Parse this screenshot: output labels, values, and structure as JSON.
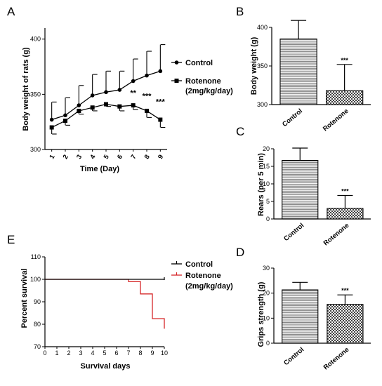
{
  "panel_labels": [
    "A",
    "B",
    "C",
    "D",
    "E"
  ],
  "chart_data": [
    {
      "id": "A",
      "type": "line",
      "xlabel": "Time (Day)",
      "ylabel": "Body weight of rats (g)",
      "ylim": [
        300,
        410
      ],
      "yticks": [
        300,
        350,
        400
      ],
      "x": [
        1,
        2,
        3,
        4,
        5,
        6,
        7,
        8,
        9
      ],
      "legend_placement": "top-right",
      "series": [
        {
          "name": "Control",
          "marker": "circle",
          "values": [
            327,
            331,
            340,
            349,
            352,
            354,
            362,
            367,
            371
          ],
          "errors": [
            16,
            16,
            18,
            19,
            19,
            17,
            20,
            22,
            24
          ]
        },
        {
          "name": "Rotenone",
          "name_line2": "(2mg/kg/day)",
          "marker": "square",
          "values": [
            320,
            326,
            335,
            338,
            341,
            339,
            340,
            335,
            327
          ],
          "errors": [
            6,
            4,
            3,
            3,
            2,
            4,
            4,
            6,
            7
          ]
        }
      ],
      "annotations": [
        {
          "x": 7,
          "y": 349,
          "text": "**"
        },
        {
          "x": 8,
          "y": 346,
          "text": "***"
        },
        {
          "x": 9,
          "y": 341,
          "text": "***"
        }
      ]
    },
    {
      "id": "B",
      "type": "bar",
      "ylabel": "Body weight (g)",
      "ylim": [
        300,
        400
      ],
      "yticks": [
        300,
        350,
        400
      ],
      "categories": [
        "Control",
        "Rotenone"
      ],
      "values": [
        385,
        318
      ],
      "errors": [
        24,
        34
      ],
      "annotations": [
        "",
        "***"
      ]
    },
    {
      "id": "C",
      "type": "bar",
      "ylabel": "Rears (per 5 min)",
      "ylim": [
        0,
        20
      ],
      "yticks": [
        0,
        5,
        10,
        15,
        20
      ],
      "categories": [
        "Control",
        "Rotenone"
      ],
      "values": [
        16.7,
        3.0
      ],
      "errors": [
        3.5,
        3.7
      ],
      "annotations": [
        "",
        "***"
      ]
    },
    {
      "id": "D",
      "type": "bar",
      "ylabel": "Grips strength (g)",
      "ylim": [
        0,
        30
      ],
      "yticks": [
        0,
        10,
        20,
        30
      ],
      "categories": [
        "Control",
        "Rotenone"
      ],
      "values": [
        21.3,
        15.5
      ],
      "errors": [
        3.0,
        3.8
      ],
      "annotations": [
        "",
        "***"
      ]
    },
    {
      "id": "E",
      "type": "line",
      "step": true,
      "xlabel": "Survival days",
      "ylabel": "Percent survival",
      "xlim": [
        0,
        10
      ],
      "ylim": [
        70,
        110
      ],
      "xticks": [
        0,
        1,
        2,
        3,
        4,
        5,
        6,
        7,
        8,
        9,
        10
      ],
      "yticks": [
        70,
        80,
        90,
        100,
        110
      ],
      "legend_placement": "top-right",
      "series": [
        {
          "name": "Control",
          "color": "#000000",
          "points": [
            [
              0,
              100
            ],
            [
              7,
              100
            ],
            [
              10,
              100
            ]
          ]
        },
        {
          "name": "Rotenone",
          "name_line2": "(2mg/kg/day)",
          "color": "#d62728",
          "points": [
            [
              0,
              100
            ],
            [
              7,
              100
            ],
            [
              7,
              99
            ],
            [
              8,
              99
            ],
            [
              8,
              93.5
            ],
            [
              9,
              93.5
            ],
            [
              9,
              82.5
            ],
            [
              10,
              82.5
            ],
            [
              10,
              78
            ]
          ]
        }
      ]
    }
  ]
}
